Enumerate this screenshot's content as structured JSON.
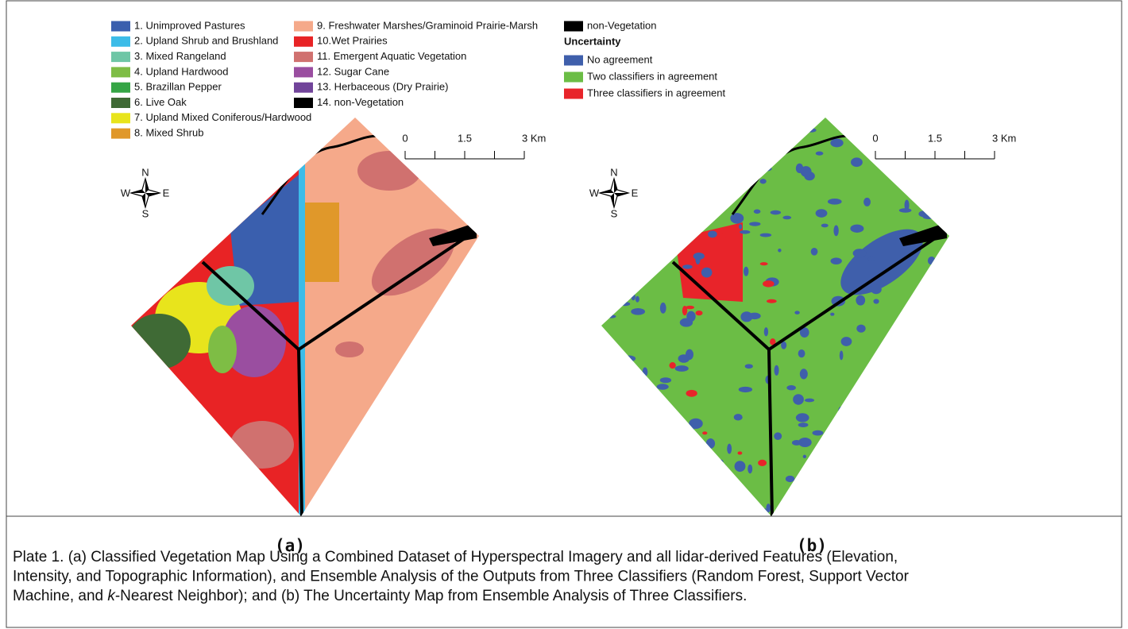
{
  "legend_a": {
    "items": [
      {
        "label": "1. Unimproved Pastures",
        "color": "#3a5fae"
      },
      {
        "label": "2. Upland Shrub and Brushland",
        "color": "#3cbce8"
      },
      {
        "label": "3. Mixed Rangeland",
        "color": "#6fc6a6"
      },
      {
        "label": "4. Upland Hardwood",
        "color": "#7ebd45"
      },
      {
        "label": "5. Brazillan Pepper",
        "color": "#35a545"
      },
      {
        "label": "6. Live Oak",
        "color": "#3f6a35"
      },
      {
        "label": "7. Upland Mixed  Coniferous/Hardwood",
        "color": "#e8e41c"
      },
      {
        "label": "8. Mixed Shrub",
        "color": "#e0982a"
      },
      {
        "label": "9. Freshwater Marshes/Graminoid Prairie-Marsh",
        "color": "#f5a98a"
      },
      {
        "label": "10.Wet Prairies",
        "color": "#e82325"
      },
      {
        "label": "11. Emergent Aquatic Vegetation",
        "color": "#d0716f"
      },
      {
        "label": "12. Sugar Cane",
        "color": "#9a4ea0"
      },
      {
        "label": "13. Herbaceous (Dry Prairie)",
        "color": "#71449a"
      },
      {
        "label": "14. non-Vegetation",
        "color": "#000000"
      }
    ]
  },
  "legend_b": {
    "non_vegetation": {
      "label": "non-Vegetation",
      "color": "#000000"
    },
    "title": "Uncertainty",
    "items": [
      {
        "label": "No agreement",
        "color": "#3f5fab"
      },
      {
        "label": "Two classifiers in agreement",
        "color": "#6bbd45"
      },
      {
        "label": "Three classifiers in agreement",
        "color": "#e8242a"
      }
    ]
  },
  "panels": [
    {
      "label": "(a)",
      "scale": [
        "0",
        "1.5",
        "3 Km"
      ],
      "compass": {
        "n": "N",
        "w": "W",
        "e": "E",
        "s": "S"
      }
    },
    {
      "label": "(b)",
      "scale": [
        "0",
        "1.5",
        "3 Km"
      ],
      "compass": {
        "n": "N",
        "w": "W",
        "e": "E",
        "s": "S"
      }
    }
  ],
  "caption": [
    "Plate 1. (a) Classified Vegetation Map Using a Combined Dataset of Hyperspectral Imagery and all lidar-derived Features (Elevation,",
    "Intensity, and Topographic Information), and Ensemble Analysis of the Outputs from Three Classifiers (Random Forest, Support Vector",
    [
      "Machine, and ",
      "k",
      "-Nearest Neighbor); and (b) The Uncertainty Map from Ensemble Analysis of Three Classifiers."
    ]
  ]
}
